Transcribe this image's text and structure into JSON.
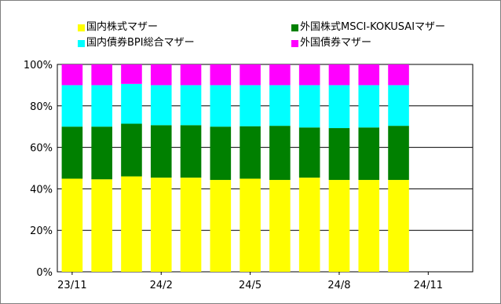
{
  "chart_data": {
    "type": "bar",
    "stacked": true,
    "categories": [
      "23/11",
      "23/12",
      "24/1",
      "24/2",
      "24/3",
      "24/4",
      "24/5",
      "24/6",
      "24/7",
      "24/8",
      "24/9",
      "24/10"
    ],
    "x_tick_labels": [
      "23/11",
      "24/2",
      "24/5",
      "24/8",
      "24/11"
    ],
    "y_tick_labels": [
      "0%",
      "20%",
      "40%",
      "60%",
      "80%",
      "100%"
    ],
    "ylim": [
      0,
      100
    ],
    "grid": true,
    "legend_position": "top",
    "series": [
      {
        "name": "国内株式マザー",
        "color": "#ffff00",
        "values": [
          44.9,
          44.6,
          46.0,
          45.4,
          45.4,
          44.3,
          44.9,
          44.3,
          45.4,
          44.3,
          44.3,
          44.3
        ]
      },
      {
        "name": "外国株式MSCI-KOKUSAIマザー",
        "color": "#008000",
        "values": [
          25.1,
          25.4,
          25.4,
          25.3,
          25.3,
          25.7,
          25.3,
          26.1,
          24.2,
          25.0,
          25.3,
          26.1
        ]
      },
      {
        "name": "国内債券BPI総合マザー",
        "color": "#00ffff",
        "values": [
          20.0,
          20.0,
          19.2,
          19.3,
          19.3,
          20.0,
          19.8,
          19.6,
          20.4,
          20.7,
          20.4,
          19.6
        ]
      },
      {
        "name": "外国債券マザー",
        "color": "#ff00ff",
        "values": [
          10.0,
          10.0,
          9.4,
          10.0,
          10.0,
          10.0,
          10.0,
          10.0,
          10.0,
          10.0,
          10.0,
          10.0
        ]
      }
    ]
  }
}
